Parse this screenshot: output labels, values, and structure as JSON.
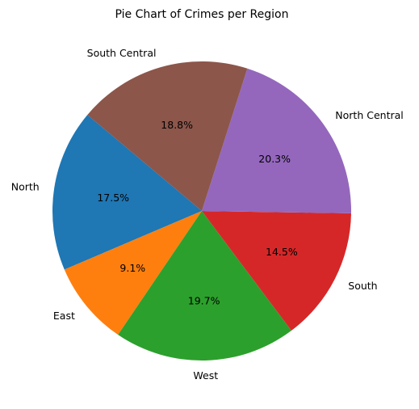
{
  "chart_data": {
    "type": "pie",
    "title": "Pie Chart of Crimes per Region",
    "slices": [
      {
        "label": "North",
        "percent": 17.5,
        "color": "#1f77b4"
      },
      {
        "label": "East",
        "percent": 9.1,
        "color": "#ff7f0e"
      },
      {
        "label": "West",
        "percent": 19.7,
        "color": "#2ca02c"
      },
      {
        "label": "South",
        "percent": 14.5,
        "color": "#d62728"
      },
      {
        "label": "North Central",
        "percent": 20.3,
        "color": "#9467bd"
      },
      {
        "label": "South Central",
        "percent": 18.8,
        "color": "#8c564b"
      }
    ],
    "start_angle_deg": 140,
    "direction": "counterclockwise",
    "grid": false,
    "legend": "none"
  }
}
